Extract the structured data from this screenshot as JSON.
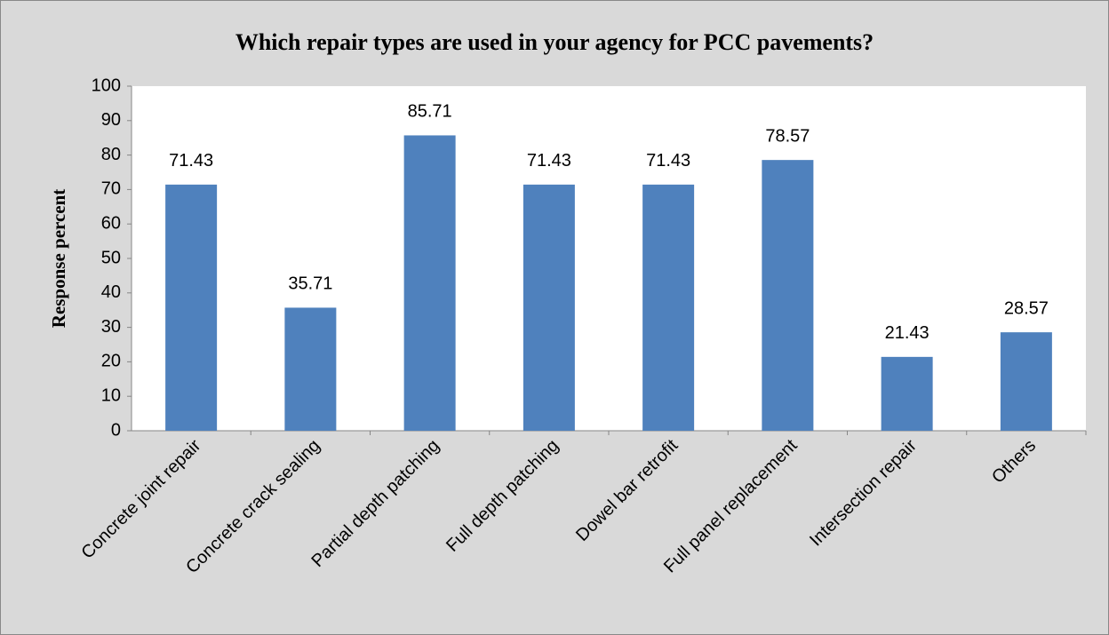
{
  "chart_data": {
    "type": "bar",
    "title": "Which repair types are used in your agency for PCC pavements?",
    "y_label": "Response percent",
    "categories": [
      "Concrete joint repair",
      "Concrete crack sealing",
      "Partial depth patching",
      "Full depth patching",
      "Dowel bar retrofit",
      "Full panel replacement",
      "Intersection repair",
      "Others"
    ],
    "values": [
      71.43,
      35.71,
      85.71,
      71.43,
      71.43,
      78.57,
      21.43,
      28.57
    ],
    "color": "#4f81bd",
    "ylim": [
      0,
      100
    ],
    "yticks": [
      0,
      10,
      20,
      30,
      40,
      50,
      60,
      70,
      80,
      90,
      100
    ],
    "grid": false
  }
}
